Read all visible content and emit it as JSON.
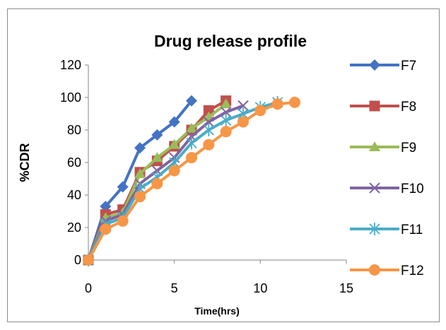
{
  "chart_data": {
    "type": "line",
    "title": "Drug release profile",
    "xlabel": "Time(hrs)",
    "ylabel": "%CDR",
    "xlim": [
      0,
      15
    ],
    "ylim": [
      0,
      120
    ],
    "xticks": [
      0,
      5,
      10,
      15
    ],
    "yticks": [
      0,
      20,
      40,
      60,
      80,
      100,
      120
    ],
    "grid": false,
    "legend_position": "right",
    "series": [
      {
        "name": "F7",
        "color": "#4472C4",
        "marker": "diamond",
        "x": [
          0,
          1,
          2,
          3,
          4,
          5,
          6
        ],
        "y": [
          0,
          33,
          45,
          69,
          77,
          85,
          98
        ]
      },
      {
        "name": "F8",
        "color": "#C0504D",
        "marker": "square",
        "x": [
          0,
          1,
          2,
          3,
          4,
          5,
          6,
          7,
          8
        ],
        "y": [
          0,
          28,
          31,
          54,
          61,
          70,
          80,
          92,
          98
        ]
      },
      {
        "name": "F9",
        "color": "#9BBB59",
        "marker": "triangle",
        "x": [
          0,
          1,
          2,
          3,
          4,
          5,
          6,
          7,
          8
        ],
        "y": [
          0,
          26,
          29,
          53,
          63,
          71,
          81,
          88,
          96
        ]
      },
      {
        "name": "F10",
        "color": "#8064A2",
        "marker": "x",
        "x": [
          0,
          1,
          2,
          3,
          4,
          5,
          6,
          7,
          8,
          9
        ],
        "y": [
          0,
          24,
          28,
          47,
          55,
          63,
          76,
          85,
          91,
          95
        ]
      },
      {
        "name": "F11",
        "color": "#4BACC6",
        "marker": "star",
        "x": [
          0,
          1,
          2,
          3,
          4,
          5,
          6,
          7,
          8,
          9,
          10,
          11
        ],
        "y": [
          0,
          22,
          26,
          44,
          51,
          60,
          72,
          80,
          86,
          90,
          94,
          97
        ]
      },
      {
        "name": "F12",
        "color": "#F79646",
        "marker": "circle",
        "x": [
          0,
          1,
          2,
          3,
          4,
          5,
          6,
          7,
          8,
          9,
          10,
          11,
          12
        ],
        "y": [
          0,
          19,
          24,
          39,
          47,
          55,
          63,
          71,
          79,
          85,
          92,
          96,
          97
        ]
      }
    ]
  }
}
